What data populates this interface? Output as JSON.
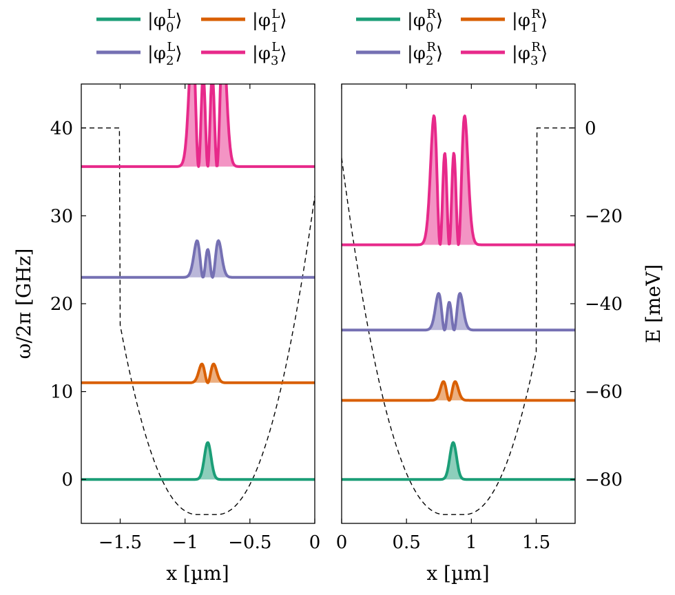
{
  "chart_data": [
    {
      "type": "line",
      "panel": "left",
      "xlabel": "x [µm]",
      "ylabel": "ω/2π [GHz]",
      "xlim": [
        -1.8,
        0
      ],
      "ylim": [
        -5,
        45
      ],
      "xticks": [
        "−1.5",
        "−1",
        "−0.5",
        "0"
      ],
      "xtick_values": [
        -1.5,
        -1,
        -0.5,
        0
      ],
      "yticks": [
        "0",
        "10",
        "20",
        "30",
        "40"
      ],
      "ytick_values": [
        0,
        10,
        20,
        30,
        40
      ],
      "series": [
        {
          "name": "|φ0L⟩",
          "label_base": "|φ",
          "label_sub": "0",
          "label_sup": "L",
          "label_end": "⟩",
          "color": "#1b9e77",
          "baseline": 0,
          "center": -0.825,
          "nodes": 0
        },
        {
          "name": "|φ1L⟩",
          "label_base": "|φ",
          "label_sub": "1",
          "label_sup": "L",
          "label_end": "⟩",
          "color": "#d95f02",
          "baseline": 11,
          "center": -0.825,
          "nodes": 1
        },
        {
          "name": "|φ2L⟩",
          "label_base": "|φ",
          "label_sub": "2",
          "label_sup": "L",
          "label_end": "⟩",
          "color": "#7570b3",
          "baseline": 23,
          "center": -0.825,
          "nodes": 2
        },
        {
          "name": "|φ3L⟩",
          "label_base": "|φ",
          "label_sub": "3",
          "label_sup": "L",
          "label_end": "⟩",
          "color": "#e7298a",
          "baseline": 35.6,
          "center": -0.825,
          "nodes": 3
        }
      ],
      "potential_color": "#000000",
      "potential_style": "dashed"
    },
    {
      "type": "line",
      "panel": "right",
      "xlabel": "x [µm]",
      "ylabel": "E [meV]",
      "xlim": [
        0,
        1.8
      ],
      "ylim": [
        -5,
        45
      ],
      "xticks": [
        "0",
        "0.5",
        "1",
        "1.5"
      ],
      "xtick_values": [
        0,
        0.5,
        1,
        1.5
      ],
      "yticks": [
        "0",
        "−20",
        "−40",
        "−60",
        "−80"
      ],
      "ytick_values": [
        0,
        -20,
        -40,
        -60,
        -80
      ],
      "series": [
        {
          "name": "|φ0R⟩",
          "label_base": "|φ",
          "label_sub": "0",
          "label_sup": "R",
          "label_end": "⟩",
          "color": "#1b9e77",
          "baseline": 0,
          "center": 0.86,
          "nodes": 0
        },
        {
          "name": "|φ1R⟩",
          "label_base": "|φ",
          "label_sub": "1",
          "label_sup": "R",
          "label_end": "⟩",
          "color": "#d95f02",
          "baseline": 9,
          "center": 0.83,
          "nodes": 1
        },
        {
          "name": "|φ2R⟩",
          "label_base": "|φ",
          "label_sub": "2",
          "label_sup": "R",
          "label_end": "⟩",
          "color": "#7570b3",
          "baseline": 17,
          "center": 0.83,
          "nodes": 2
        },
        {
          "name": "|φ3R⟩",
          "label_base": "|φ",
          "label_sub": "3",
          "label_sup": "R",
          "label_end": "⟩",
          "color": "#e7298a",
          "baseline": 26.7,
          "center": 0.83,
          "nodes": 3
        }
      ],
      "potential_color": "#000000",
      "potential_style": "dashed"
    }
  ],
  "legend": {
    "placement": "top",
    "left_entries": [
      "|φ0L⟩",
      "|φ1L⟩",
      "|φ2L⟩",
      "|φ3L⟩"
    ],
    "right_entries": [
      "|φ0R⟩",
      "|φ1R⟩",
      "|φ2R⟩",
      "|φ3R⟩"
    ]
  }
}
